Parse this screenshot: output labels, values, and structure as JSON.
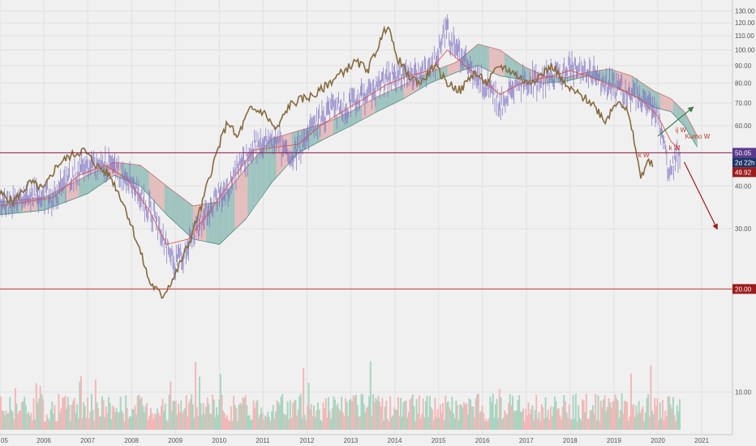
{
  "chart_data": {
    "type": "line",
    "x_axis": {
      "tick_labels": [
        "05",
        "2006",
        "2007",
        "2008",
        "2009",
        "2010",
        "2011",
        "2012",
        "2013",
        "2014",
        "2015",
        "2016",
        "2017",
        "2018",
        "2019",
        "2020",
        "2021"
      ],
      "range": [
        2005.0,
        2021.7
      ]
    },
    "y_axis": {
      "position": "right",
      "scale": "log",
      "range": [
        7.5,
        140
      ],
      "tick_values": [
        10,
        20,
        30,
        40,
        50,
        60,
        70,
        80,
        90,
        100,
        110,
        120,
        130
      ],
      "tick_labels": [
        "10.00",
        "20.00",
        "30.00",
        "40.00",
        "50.00",
        "60.00",
        "70.00",
        "80.00",
        "90.00",
        "100.00",
        "110.00",
        "120.00",
        "130.00"
      ]
    },
    "grid": true,
    "colors": {
      "price_bars": "#7b6fc0",
      "lagging_line": "#866a3e",
      "base_line": "#d9534f",
      "cloud_bullish": "#8fbcb6",
      "cloud_bearish": "#e2b4b4",
      "horizontal_level": "#8b1a4a",
      "lower_level": "#c0392b",
      "volume_up": "#a8d5c0",
      "volume_down": "#f2b8b8",
      "green_arrow": "#3f7d3f",
      "red_arrow": "#a01a1a"
    },
    "series": [
      {
        "key": "price",
        "points": [
          [
            2005.0,
            35
          ],
          [
            2005.4,
            36
          ],
          [
            2005.8,
            38
          ],
          [
            2006.2,
            37
          ],
          [
            2006.6,
            42
          ],
          [
            2006.9,
            45
          ],
          [
            2007.2,
            47
          ],
          [
            2007.5,
            46
          ],
          [
            2007.9,
            43
          ],
          [
            2008.2,
            37
          ],
          [
            2008.5,
            33
          ],
          [
            2008.8,
            26
          ],
          [
            2009.0,
            24
          ],
          [
            2009.3,
            27
          ],
          [
            2009.6,
            32
          ],
          [
            2009.9,
            36
          ],
          [
            2010.2,
            40
          ],
          [
            2010.5,
            46
          ],
          [
            2010.8,
            52
          ],
          [
            2011.1,
            56
          ],
          [
            2011.4,
            53
          ],
          [
            2011.7,
            49
          ],
          [
            2012.0,
            57
          ],
          [
            2012.3,
            62
          ],
          [
            2012.6,
            66
          ],
          [
            2012.9,
            68
          ],
          [
            2013.2,
            72
          ],
          [
            2013.5,
            77
          ],
          [
            2013.8,
            81
          ],
          [
            2014.1,
            84
          ],
          [
            2014.4,
            86
          ],
          [
            2014.7,
            88
          ],
          [
            2015.0,
            96
          ],
          [
            2015.15,
            114
          ],
          [
            2015.35,
            104
          ],
          [
            2015.6,
            92
          ],
          [
            2015.9,
            84
          ],
          [
            2016.2,
            76
          ],
          [
            2016.4,
            68
          ],
          [
            2016.7,
            78
          ],
          [
            2017.0,
            83
          ],
          [
            2017.3,
            80
          ],
          [
            2017.6,
            84
          ],
          [
            2017.9,
            87
          ],
          [
            2018.2,
            88
          ],
          [
            2018.5,
            84
          ],
          [
            2018.8,
            80
          ],
          [
            2019.1,
            78
          ],
          [
            2019.4,
            74
          ],
          [
            2019.7,
            72
          ],
          [
            2019.9,
            68
          ],
          [
            2020.1,
            57
          ],
          [
            2020.25,
            44
          ],
          [
            2020.4,
            49
          ],
          [
            2020.5,
            50
          ]
        ]
      },
      {
        "key": "lagging",
        "points": [
          [
            2005.0,
            38
          ],
          [
            2005.3,
            36
          ],
          [
            2005.7,
            41
          ],
          [
            2006.0,
            39
          ],
          [
            2006.3,
            46
          ],
          [
            2006.6,
            49
          ],
          [
            2006.9,
            51
          ],
          [
            2007.2,
            46
          ],
          [
            2007.5,
            43
          ],
          [
            2007.8,
            36
          ],
          [
            2008.1,
            28
          ],
          [
            2008.4,
            21
          ],
          [
            2008.7,
            19
          ],
          [
            2009.0,
            22
          ],
          [
            2009.3,
            27
          ],
          [
            2009.6,
            35
          ],
          [
            2009.9,
            48
          ],
          [
            2010.2,
            62
          ],
          [
            2010.4,
            55
          ],
          [
            2010.7,
            67
          ],
          [
            2011.0,
            66
          ],
          [
            2011.3,
            58
          ],
          [
            2011.6,
            69
          ],
          [
            2011.9,
            72
          ],
          [
            2012.2,
            74
          ],
          [
            2012.5,
            80
          ],
          [
            2012.8,
            86
          ],
          [
            2013.1,
            92
          ],
          [
            2013.4,
            88
          ],
          [
            2013.7,
            108
          ],
          [
            2013.85,
            120
          ],
          [
            2014.0,
            98
          ],
          [
            2014.3,
            84
          ],
          [
            2014.6,
            80
          ],
          [
            2014.9,
            90
          ],
          [
            2015.2,
            80
          ],
          [
            2015.5,
            76
          ],
          [
            2015.8,
            86
          ],
          [
            2016.1,
            80
          ],
          [
            2016.4,
            90
          ],
          [
            2016.7,
            86
          ],
          [
            2017.0,
            80
          ],
          [
            2017.3,
            84
          ],
          [
            2017.6,
            90
          ],
          [
            2017.9,
            78
          ],
          [
            2018.2,
            74
          ],
          [
            2018.5,
            70
          ],
          [
            2018.8,
            62
          ],
          [
            2019.1,
            72
          ],
          [
            2019.3,
            66
          ],
          [
            2019.5,
            51
          ],
          [
            2019.6,
            42
          ],
          [
            2019.75,
            47
          ],
          [
            2019.9,
            46
          ]
        ]
      },
      {
        "key": "base",
        "points": [
          [
            2005.0,
            35
          ],
          [
            2005.6,
            36
          ],
          [
            2006.2,
            37
          ],
          [
            2006.8,
            43
          ],
          [
            2007.4,
            46
          ],
          [
            2007.9,
            42
          ],
          [
            2008.4,
            34
          ],
          [
            2008.8,
            27
          ],
          [
            2009.3,
            28
          ],
          [
            2009.8,
            34
          ],
          [
            2010.3,
            42
          ],
          [
            2010.8,
            51
          ],
          [
            2011.3,
            52
          ],
          [
            2011.8,
            53
          ],
          [
            2012.3,
            60
          ],
          [
            2012.8,
            66
          ],
          [
            2013.3,
            72
          ],
          [
            2013.8,
            79
          ],
          [
            2014.3,
            84
          ],
          [
            2014.8,
            87
          ],
          [
            2015.2,
            100
          ],
          [
            2015.6,
            90
          ],
          [
            2016.0,
            82
          ],
          [
            2016.4,
            74
          ],
          [
            2016.8,
            79
          ],
          [
            2017.2,
            82
          ],
          [
            2017.6,
            84
          ],
          [
            2018.0,
            87
          ],
          [
            2018.4,
            84
          ],
          [
            2018.8,
            80
          ],
          [
            2019.2,
            76
          ],
          [
            2019.6,
            72
          ],
          [
            2020.0,
            64
          ],
          [
            2020.3,
            54
          ],
          [
            2020.5,
            51
          ]
        ]
      },
      {
        "key": "cloud_top",
        "points": [
          [
            2005.0,
            36
          ],
          [
            2006.0,
            37
          ],
          [
            2007.0,
            43
          ],
          [
            2007.6,
            47
          ],
          [
            2008.2,
            46
          ],
          [
            2008.8,
            40
          ],
          [
            2009.4,
            35
          ],
          [
            2010.0,
            36
          ],
          [
            2010.6,
            45
          ],
          [
            2011.2,
            55
          ],
          [
            2011.8,
            58
          ],
          [
            2012.4,
            61
          ],
          [
            2013.0,
            66
          ],
          [
            2013.6,
            73
          ],
          [
            2014.2,
            79
          ],
          [
            2014.8,
            86
          ],
          [
            2015.4,
            92
          ],
          [
            2015.9,
            104
          ],
          [
            2016.4,
            100
          ],
          [
            2016.9,
            90
          ],
          [
            2017.4,
            84
          ],
          [
            2017.9,
            83
          ],
          [
            2018.4,
            86
          ],
          [
            2018.9,
            88
          ],
          [
            2019.4,
            84
          ],
          [
            2019.9,
            76
          ],
          [
            2020.3,
            72
          ],
          [
            2020.6,
            66
          ],
          [
            2020.9,
            56
          ]
        ]
      },
      {
        "key": "cloud_bottom",
        "points": [
          [
            2005.0,
            33
          ],
          [
            2006.0,
            34
          ],
          [
            2007.0,
            38
          ],
          [
            2007.6,
            43
          ],
          [
            2008.2,
            40
          ],
          [
            2008.8,
            33
          ],
          [
            2009.4,
            28
          ],
          [
            2010.0,
            27
          ],
          [
            2010.6,
            32
          ],
          [
            2011.2,
            41
          ],
          [
            2011.8,
            50
          ],
          [
            2012.4,
            55
          ],
          [
            2013.0,
            60
          ],
          [
            2013.6,
            66
          ],
          [
            2014.2,
            72
          ],
          [
            2014.8,
            80
          ],
          [
            2015.4,
            86
          ],
          [
            2015.9,
            90
          ],
          [
            2016.4,
            84
          ],
          [
            2016.9,
            82
          ],
          [
            2017.4,
            80
          ],
          [
            2017.9,
            81
          ],
          [
            2018.4,
            84
          ],
          [
            2018.9,
            80
          ],
          [
            2019.4,
            74
          ],
          [
            2019.9,
            68
          ],
          [
            2020.3,
            66
          ],
          [
            2020.6,
            60
          ],
          [
            2020.9,
            52
          ]
        ]
      }
    ],
    "horizontal_levels": [
      {
        "key": "upper",
        "value": 50.05,
        "label": "50.05",
        "tag_color": "#5a3a8c",
        "line_color": "#8b1a4a"
      },
      {
        "key": "lower",
        "value": 20.0,
        "label": "20.00",
        "tag_color": "#9b1c1c",
        "line_color": "#c0392b"
      }
    ],
    "price_tags": [
      {
        "key": "timer",
        "label": "2d 22h",
        "tag_color": "#1f3566"
      },
      {
        "key": "last",
        "label": "49.92",
        "tag_color": "#9b1c1c"
      }
    ],
    "annotations": [
      {
        "key": "ann-k-w-left",
        "text": "k W",
        "x": 2019.55,
        "y": 48.5,
        "color": "#c0392b"
      },
      {
        "key": "ann-k-w-right",
        "text": "k W",
        "x": 2020.25,
        "y": 51,
        "color": "#c0392b"
      },
      {
        "key": "ann-j-w",
        "text": "ij W",
        "x": 2020.4,
        "y": 57.5,
        "color": "#c0392b"
      },
      {
        "key": "ann-kumo-w",
        "text": "Kumo W",
        "x": 2020.62,
        "y": 55,
        "color": "#c0392b"
      }
    ],
    "volume": {
      "visible": true
    }
  }
}
